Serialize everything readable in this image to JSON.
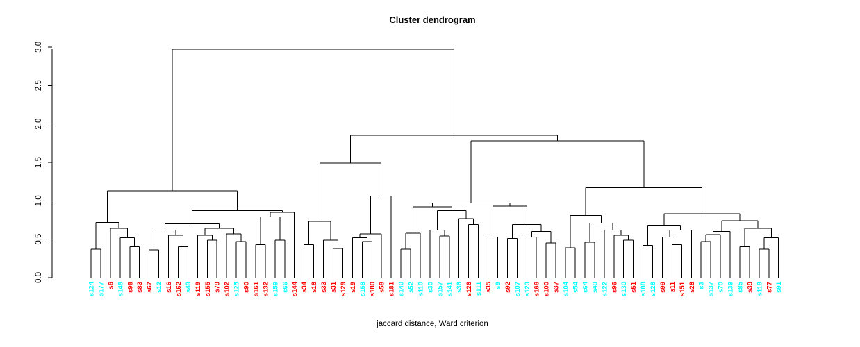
{
  "title": "Cluster dendrogram",
  "xlabel": "jaccard distance, Ward criterion",
  "chart_data": {
    "type": "dendrogram",
    "title": "Cluster dendrogram",
    "xlabel": "jaccard distance, Ward criterion",
    "ylabel": "",
    "ylim": [
      0,
      3
    ],
    "yticks": [
      "0.0",
      "0.5",
      "1.0",
      "1.5",
      "2.0",
      "2.5",
      "3.0"
    ],
    "grid": false,
    "line_color": "#000000",
    "label_colors": {
      "red": "#FF0000",
      "cyan": "#00FFFF"
    },
    "leaves": [
      {
        "label": "s124",
        "color": "cyan"
      },
      {
        "label": "s177",
        "color": "cyan"
      },
      {
        "label": "s6",
        "color": "red"
      },
      {
        "label": "s148",
        "color": "cyan"
      },
      {
        "label": "s98",
        "color": "red"
      },
      {
        "label": "s83",
        "color": "red"
      },
      {
        "label": "s67",
        "color": "red"
      },
      {
        "label": "s12",
        "color": "cyan"
      },
      {
        "label": "s16",
        "color": "red"
      },
      {
        "label": "s162",
        "color": "red"
      },
      {
        "label": "s49",
        "color": "cyan"
      },
      {
        "label": "s119",
        "color": "red"
      },
      {
        "label": "s155",
        "color": "red"
      },
      {
        "label": "s79",
        "color": "red"
      },
      {
        "label": "s102",
        "color": "red"
      },
      {
        "label": "s125",
        "color": "cyan"
      },
      {
        "label": "s90",
        "color": "red"
      },
      {
        "label": "s161",
        "color": "red"
      },
      {
        "label": "s132",
        "color": "red"
      },
      {
        "label": "s159",
        "color": "cyan"
      },
      {
        "label": "s66",
        "color": "cyan"
      },
      {
        "label": "s144",
        "color": "red"
      },
      {
        "label": "s34",
        "color": "red"
      },
      {
        "label": "s18",
        "color": "red"
      },
      {
        "label": "s33",
        "color": "red"
      },
      {
        "label": "s31",
        "color": "red"
      },
      {
        "label": "s129",
        "color": "red"
      },
      {
        "label": "s19",
        "color": "red"
      },
      {
        "label": "s158",
        "color": "cyan"
      },
      {
        "label": "s180",
        "color": "red"
      },
      {
        "label": "s58",
        "color": "red"
      },
      {
        "label": "s181",
        "color": "red"
      },
      {
        "label": "s140",
        "color": "cyan"
      },
      {
        "label": "s52",
        "color": "cyan"
      },
      {
        "label": "s110",
        "color": "cyan"
      },
      {
        "label": "s30",
        "color": "cyan"
      },
      {
        "label": "s157",
        "color": "cyan"
      },
      {
        "label": "s141",
        "color": "cyan"
      },
      {
        "label": "s36",
        "color": "cyan"
      },
      {
        "label": "s126",
        "color": "red"
      },
      {
        "label": "s111",
        "color": "cyan"
      },
      {
        "label": "s35",
        "color": "red"
      },
      {
        "label": "s9",
        "color": "cyan"
      },
      {
        "label": "s92",
        "color": "red"
      },
      {
        "label": "s107",
        "color": "cyan"
      },
      {
        "label": "s123",
        "color": "cyan"
      },
      {
        "label": "s166",
        "color": "red"
      },
      {
        "label": "s100",
        "color": "red"
      },
      {
        "label": "s37",
        "color": "red"
      },
      {
        "label": "s104",
        "color": "cyan"
      },
      {
        "label": "s54",
        "color": "cyan"
      },
      {
        "label": "s64",
        "color": "cyan"
      },
      {
        "label": "s40",
        "color": "cyan"
      },
      {
        "label": "s122",
        "color": "cyan"
      },
      {
        "label": "s96",
        "color": "red"
      },
      {
        "label": "s130",
        "color": "cyan"
      },
      {
        "label": "s51",
        "color": "red"
      },
      {
        "label": "s188",
        "color": "cyan"
      },
      {
        "label": "s128",
        "color": "cyan"
      },
      {
        "label": "s99",
        "color": "red"
      },
      {
        "label": "s11",
        "color": "red"
      },
      {
        "label": "s151",
        "color": "red"
      },
      {
        "label": "s28",
        "color": "red"
      },
      {
        "label": "s3",
        "color": "cyan"
      },
      {
        "label": "s137",
        "color": "cyan"
      },
      {
        "label": "s70",
        "color": "cyan"
      },
      {
        "label": "s139",
        "color": "cyan"
      },
      {
        "label": "s85",
        "color": "cyan"
      },
      {
        "label": "s39",
        "color": "red"
      },
      {
        "label": "s118",
        "color": "cyan"
      },
      {
        "label": "s77",
        "color": "red"
      },
      {
        "label": "s91",
        "color": "cyan"
      }
    ],
    "merges": [
      2.97,
      [
        1.13,
        [
          0.72,
          [
            0.37,
            0,
            1
          ],
          [
            0.64,
            2,
            [
              0.52,
              3,
              [
                0.4,
                4,
                5
              ]
            ]
          ]
        ],
        [
          0.87,
          [
            0.7,
            [
              0.62,
              [
                0.36,
                6,
                7
              ],
              [
                0.55,
                8,
                [
                  0.4,
                  9,
                  10
                ]
              ]
            ],
            [
              0.64,
              [
                0.55,
                11,
                [
                  0.49,
                  12,
                  13
                ]
              ],
              [
                0.57,
                14,
                [
                  0.47,
                  15,
                  16
                ]
              ]
            ]
          ],
          [
            0.85,
            [
              0.79,
              [
                0.43,
                17,
                18
              ],
              [
                0.49,
                19,
                20
              ]
            ],
            21
          ]
        ]
      ],
      [
        1.85,
        [
          1.49,
          [
            0.73,
            [
              0.43,
              22,
              23
            ],
            [
              0.49,
              24,
              [
                0.38,
                25,
                26
              ]
            ]
          ],
          [
            1.06,
            [
              0.57,
              [
                0.52,
                27,
                [
                  0.47,
                  28,
                  29
                ]
              ],
              30
            ],
            31
          ]
        ],
        [
          1.78,
          [
            0.97,
            [
              0.92,
              [
                0.58,
                [
                  0.37,
                  32,
                  33
                ],
                34
              ],
              [
                0.87,
                [
                  0.62,
                  35,
                  [
                    0.54,
                    36,
                    37
                  ]
                ],
                [
                  0.77,
                  38,
                  [
                    0.69,
                    39,
                    40
                  ]
                ]
              ]
            ],
            [
              0.93,
              [
                0.53,
                41,
                42
              ],
              [
                0.69,
                [
                  0.51,
                  43,
                  44
                ],
                [
                  0.6,
                  [
                    0.53,
                    45,
                    46
                  ],
                  [
                    0.45,
                    47,
                    48
                  ]
                ]
              ]
            ]
          ],
          [
            1.17,
            [
              0.81,
              [
                0.39,
                49,
                50
              ],
              [
                0.71,
                [
                  0.46,
                  51,
                  52
                ],
                [
                  0.62,
                  53,
                  [
                    0.55,
                    54,
                    [
                      0.49,
                      55,
                      56
                    ]
                  ]
                ]
              ]
            ],
            [
              0.83,
              [
                0.68,
                [
                  0.42,
                  57,
                  58
                ],
                [
                  0.62,
                  [
                    0.53,
                    59,
                    [
                      0.43,
                      60,
                      61
                    ]
                  ],
                  62
                ]
              ],
              [
                0.74,
                [
                  0.6,
                  [
                    0.56,
                    [
                      0.47,
                      63,
                      64
                    ],
                    65
                  ],
                  66
                ],
                [
                  0.64,
                  [
                    0.4,
                    67,
                    68
                  ],
                  [
                    0.52,
                    [
                      0.37,
                      69,
                      70
                    ],
                    71
                  ]
                ]
              ]
            ]
          ]
        ]
      ]
    ]
  }
}
